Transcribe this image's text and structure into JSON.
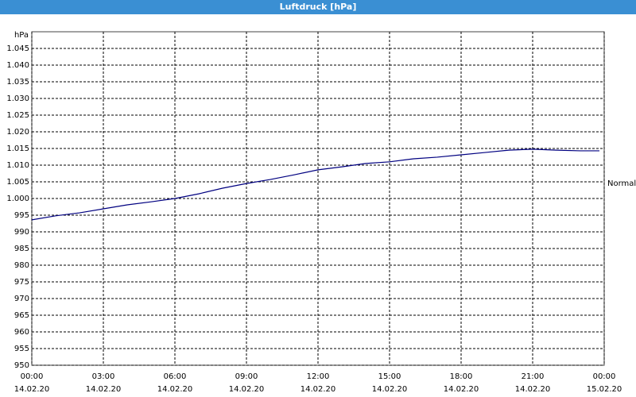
{
  "chart_data": {
    "type": "line",
    "title": "Luftdruck [hPa]",
    "y_label": "hPa",
    "x": [
      0,
      1,
      2,
      3,
      4,
      5,
      6,
      7,
      8,
      9,
      10,
      11,
      12,
      13,
      14,
      15,
      16,
      17,
      18,
      19,
      20,
      21,
      22,
      23,
      23.8
    ],
    "series": [
      {
        "name": "Luftdruck",
        "color": "#000080",
        "values": [
          993.6,
          994.8,
          995.7,
          996.9,
          998.1,
          999.0,
          1000.0,
          1001.4,
          1003.1,
          1004.5,
          1005.7,
          1007.1,
          1008.6,
          1009.5,
          1010.5,
          1011.0,
          1011.9,
          1012.4,
          1013.1,
          1013.8,
          1014.5,
          1014.8,
          1014.5,
          1014.3,
          1014.3
        ]
      }
    ],
    "xlim": [
      0,
      24
    ],
    "xticks": [
      {
        "value": 0,
        "label": "00:00"
      },
      {
        "value": 3,
        "label": "03:00"
      },
      {
        "value": 6,
        "label": "06:00"
      },
      {
        "value": 9,
        "label": "09:00"
      },
      {
        "value": 12,
        "label": "12:00"
      },
      {
        "value": 15,
        "label": "15:00"
      },
      {
        "value": 18,
        "label": "18:00"
      },
      {
        "value": 21,
        "label": "21:00"
      },
      {
        "value": 24,
        "label": "00:00"
      }
    ],
    "xtick_dates": [
      "14.02.20",
      "14.02.20",
      "14.02.20",
      "14.02.20",
      "14.02.20",
      "14.02.20",
      "14.02.20",
      "14.02.20",
      "15.02.20"
    ],
    "ylim": [
      950,
      1050
    ],
    "yticks": [
      950,
      955,
      960,
      965,
      970,
      975,
      980,
      985,
      990,
      995,
      {
        "value": 1000,
        "label": "1.000"
      },
      {
        "value": 1005,
        "label": "1.005"
      },
      {
        "value": 1010,
        "label": "1.010"
      },
      {
        "value": 1015,
        "label": "1.015"
      },
      {
        "value": 1020,
        "label": "1.020"
      },
      {
        "value": 1025,
        "label": "1.025"
      },
      {
        "value": 1030,
        "label": "1.030"
      },
      {
        "value": 1035,
        "label": "1.035"
      },
      {
        "value": 1040,
        "label": "1.040"
      },
      {
        "value": 1045,
        "label": "1.045"
      }
    ],
    "grid": true,
    "annotations": [
      {
        "text": "Normal",
        "y": 1004.5
      }
    ]
  }
}
